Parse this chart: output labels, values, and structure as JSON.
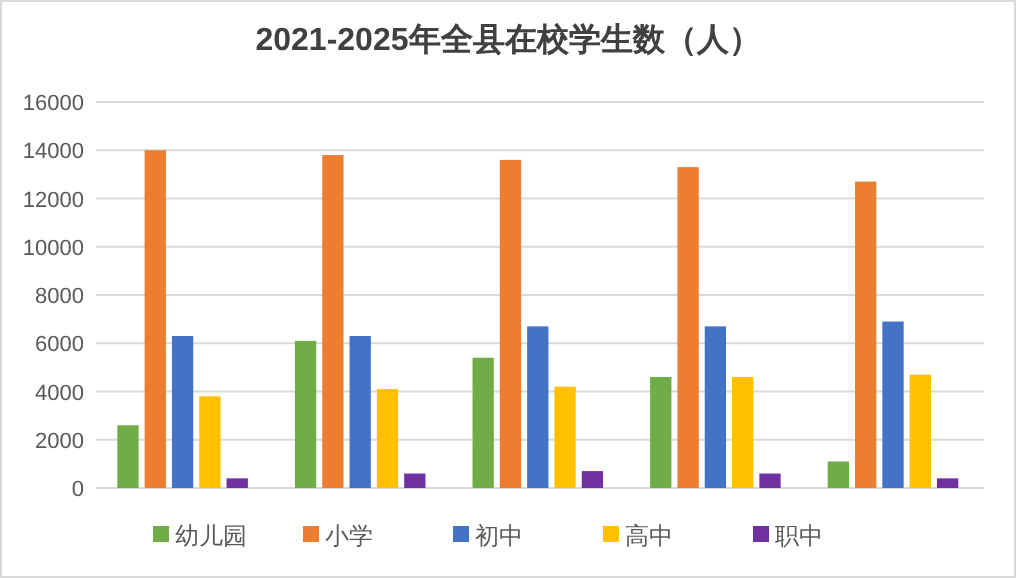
{
  "chart_data": {
    "type": "bar",
    "title": "2021-2025年全县在校学生数（人）",
    "categories": [
      null,
      null,
      null,
      null,
      null
    ],
    "series": [
      {
        "name": "幼儿园",
        "color": "#70ad47",
        "values": [
          2600,
          6100,
          5400,
          4600,
          1100
        ]
      },
      {
        "name": "小学",
        "color": "#ed7d31",
        "values": [
          14000,
          13800,
          13600,
          13300,
          12700
        ]
      },
      {
        "name": "初中",
        "color": "#4472c4",
        "values": [
          6300,
          6300,
          6700,
          6700,
          6900
        ]
      },
      {
        "name": "高中",
        "color": "#ffc000",
        "values": [
          3800,
          4100,
          4200,
          4600,
          4700
        ]
      },
      {
        "name": "职中",
        "color": "#7030a0",
        "values": [
          400,
          600,
          700,
          600,
          400
        ]
      }
    ],
    "ylim": [
      0,
      16000
    ],
    "yticks": [
      0,
      2000,
      4000,
      6000,
      8000,
      10000,
      12000,
      14000,
      16000
    ],
    "grid": "y",
    "legend": "bottom"
  }
}
